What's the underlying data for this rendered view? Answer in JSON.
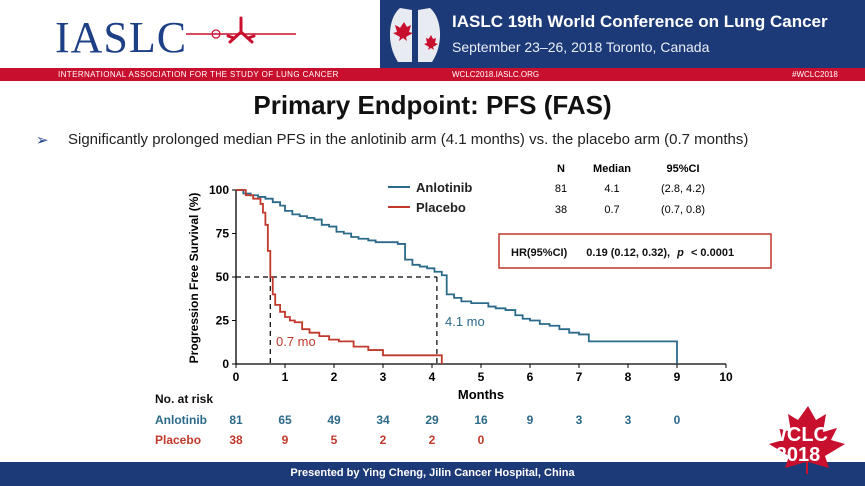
{
  "header": {
    "logo_text": "IASLC",
    "conference_title": "IASLC 19th World Conference on Lung Cancer",
    "conference_dates": "September 23–26, 2018  Toronto, Canada",
    "org_name": "INTERNATIONAL ASSOCIATION FOR THE STUDY OF LUNG CANCER",
    "website": "WCLC2018.IASLC.ORG",
    "hashtag": "#WCLC2018"
  },
  "slide": {
    "title": "Primary Endpoint: PFS (FAS)",
    "bullet_marker": "➢",
    "bullet": "Significantly prolonged median PFS in the anlotinib arm (4.1 months) vs. the placebo arm (0.7 months)"
  },
  "stats_table": {
    "headers": [
      "N",
      "Median",
      "95%CI"
    ],
    "rows": [
      [
        "81",
        "4.1",
        "(2.8, 4.2)"
      ],
      [
        "38",
        "0.7",
        "(0.7, 0.8)"
      ]
    ]
  },
  "hr_box": {
    "label": "HR(95%CI)",
    "value": "0.19 (0.12, 0.32),",
    "p_symbol": "p",
    "p_value": "< 0.0001"
  },
  "risk_table": {
    "label": "No. at risk",
    "rows": [
      {
        "name": "Anlotinib",
        "color": "#2c6a8a",
        "values": [
          "81",
          "65",
          "49",
          "34",
          "29",
          "16",
          "9",
          "3",
          "3",
          "0"
        ]
      },
      {
        "name": "Placebo",
        "color": "#c0392b",
        "values": [
          "38",
          "9",
          "5",
          "2",
          "2",
          "0"
        ]
      }
    ]
  },
  "chart_data": {
    "type": "line",
    "step": true,
    "xlabel": "Months",
    "ylabel": "Progression Free Survival (%)",
    "xlim": [
      0,
      10
    ],
    "ylim": [
      0,
      100
    ],
    "xticks": [
      "0",
      "1",
      "2",
      "3",
      "4",
      "5",
      "6",
      "7",
      "8",
      "9",
      "10"
    ],
    "yticks": [
      "0",
      "25",
      "50",
      "75",
      "100"
    ],
    "legend_position": "top-center",
    "series": [
      {
        "name": "Anlotinib",
        "color": "#2c6a8a",
        "x": [
          0,
          0.15,
          0.3,
          0.45,
          0.6,
          0.75,
          0.9,
          1.0,
          1.15,
          1.3,
          1.45,
          1.6,
          1.75,
          1.9,
          2.05,
          2.2,
          2.35,
          2.5,
          2.7,
          2.85,
          3.0,
          3.3,
          3.45,
          3.6,
          3.75,
          3.9,
          4.05,
          4.2,
          4.3,
          4.45,
          4.6,
          4.8,
          5.0,
          5.15,
          5.3,
          5.5,
          5.7,
          5.85,
          6.0,
          6.2,
          6.4,
          6.6,
          6.8,
          7.0,
          7.2,
          8.8,
          9.0
        ],
        "y": [
          100,
          98,
          97,
          96,
          95,
          93,
          91,
          88,
          86,
          85,
          84,
          83,
          80,
          79,
          76,
          75,
          73,
          72,
          71,
          70,
          70,
          69,
          60,
          57,
          56,
          55,
          53,
          51,
          40,
          38,
          36,
          35,
          35,
          33,
          32,
          31,
          28,
          26,
          25,
          23,
          22,
          20,
          18,
          17,
          13,
          13,
          0
        ]
      },
      {
        "name": "Placebo",
        "color": "#c0392b",
        "x": [
          0,
          0.2,
          0.35,
          0.5,
          0.55,
          0.6,
          0.65,
          0.7,
          0.75,
          0.8,
          0.9,
          1.0,
          1.1,
          1.2,
          1.35,
          1.5,
          1.7,
          1.9,
          2.1,
          2.4,
          2.7,
          3.0,
          4.15,
          4.2
        ],
        "y": [
          100,
          97,
          95,
          92,
          87,
          80,
          65,
          50,
          40,
          34,
          30,
          27,
          25,
          24,
          20,
          18,
          16,
          14,
          13,
          10,
          8,
          5,
          5,
          0
        ]
      }
    ],
    "medians": [
      {
        "series": "Anlotinib",
        "x": 4.1,
        "y": 50,
        "label": "4.1 mo"
      },
      {
        "series": "Placebo",
        "x": 0.7,
        "y": 50,
        "label": "0.7 mo"
      }
    ]
  },
  "footer": {
    "presenter": "Presented by Ying Cheng, Jilin Cancer Hospital, China",
    "badge_line1": "WCLC",
    "badge_line2": "2018"
  }
}
